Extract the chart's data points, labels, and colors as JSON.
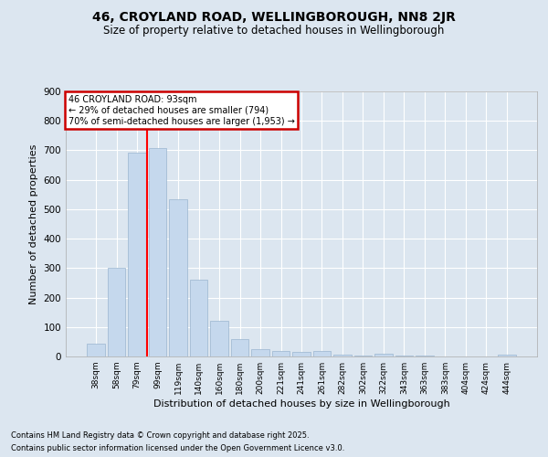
{
  "title_line1": "46, CROYLAND ROAD, WELLINGBOROUGH, NN8 2JR",
  "title_line2": "Size of property relative to detached houses in Wellingborough",
  "xlabel": "Distribution of detached houses by size in Wellingborough",
  "ylabel": "Number of detached properties",
  "categories": [
    "38sqm",
    "58sqm",
    "79sqm",
    "99sqm",
    "119sqm",
    "140sqm",
    "160sqm",
    "180sqm",
    "200sqm",
    "221sqm",
    "241sqm",
    "261sqm",
    "282sqm",
    "302sqm",
    "322sqm",
    "343sqm",
    "363sqm",
    "383sqm",
    "404sqm",
    "424sqm",
    "444sqm"
  ],
  "values": [
    43,
    300,
    693,
    707,
    535,
    260,
    120,
    60,
    25,
    20,
    15,
    18,
    5,
    4,
    8,
    3,
    2,
    1,
    1,
    1,
    5
  ],
  "bar_color": "#c5d8ed",
  "bar_edge_color": "#9ab5cf",
  "red_line_x": 2.5,
  "annotation_text": "46 CROYLAND ROAD: 93sqm\n← 29% of detached houses are smaller (794)\n70% of semi-detached houses are larger (1,953) →",
  "annotation_box_facecolor": "#ffffff",
  "annotation_box_edgecolor": "#cc0000",
  "footnote_line1": "Contains HM Land Registry data © Crown copyright and database right 2025.",
  "footnote_line2": "Contains public sector information licensed under the Open Government Licence v3.0.",
  "background_color": "#dce6f0",
  "grid_color": "#ffffff",
  "ylim": [
    0,
    900
  ],
  "yticks": [
    0,
    100,
    200,
    300,
    400,
    500,
    600,
    700,
    800,
    900
  ]
}
